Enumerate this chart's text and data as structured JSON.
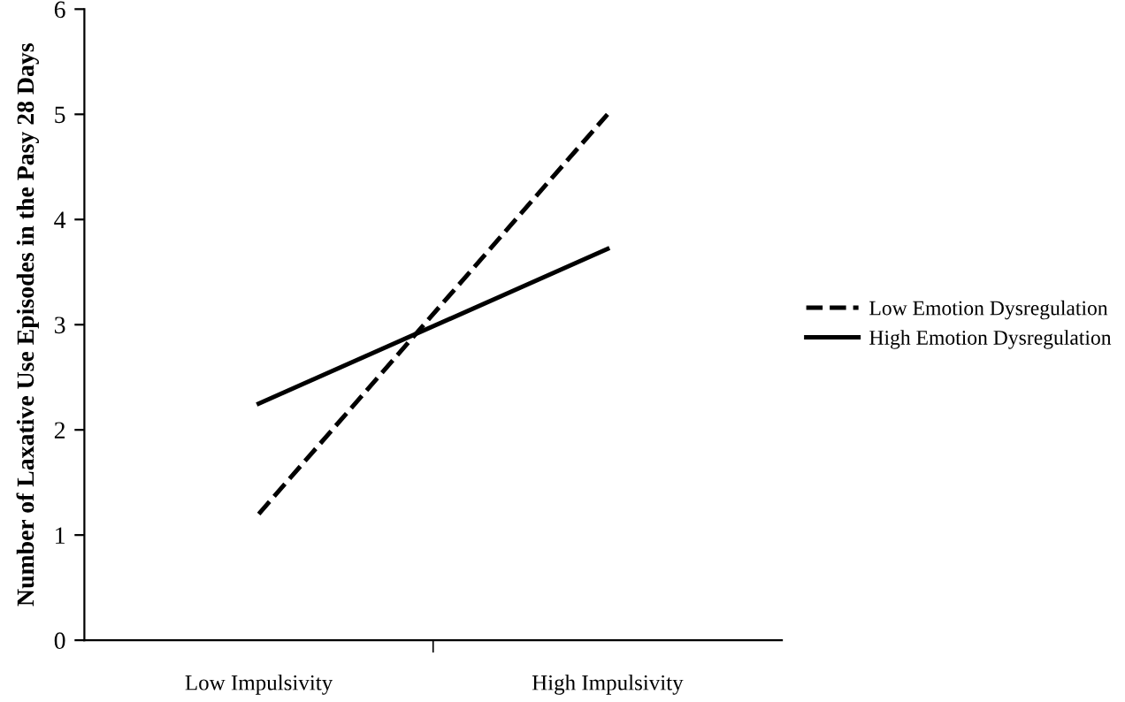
{
  "chart_data": {
    "type": "line",
    "ylabel": "Number of Laxative Use Episodes in the Pasy 28 Days",
    "categories": [
      "Low Impulsivity",
      "High Impulsivity"
    ],
    "series": [
      {
        "name": "Low Emotion Dysregulation",
        "color": "#000000",
        "values": [
          1.2,
          5.0
        ],
        "line_style": "dashed"
      },
      {
        "name": "High Emotion Dysregulation",
        "color": "#000000",
        "values": [
          2.25,
          3.72
        ],
        "line_style": "solid"
      }
    ],
    "ylim": [
      0,
      6
    ],
    "yticks": [
      0,
      1,
      2,
      3,
      4,
      5,
      6
    ],
    "grid": false,
    "legend": "right",
    "marker": "none"
  }
}
